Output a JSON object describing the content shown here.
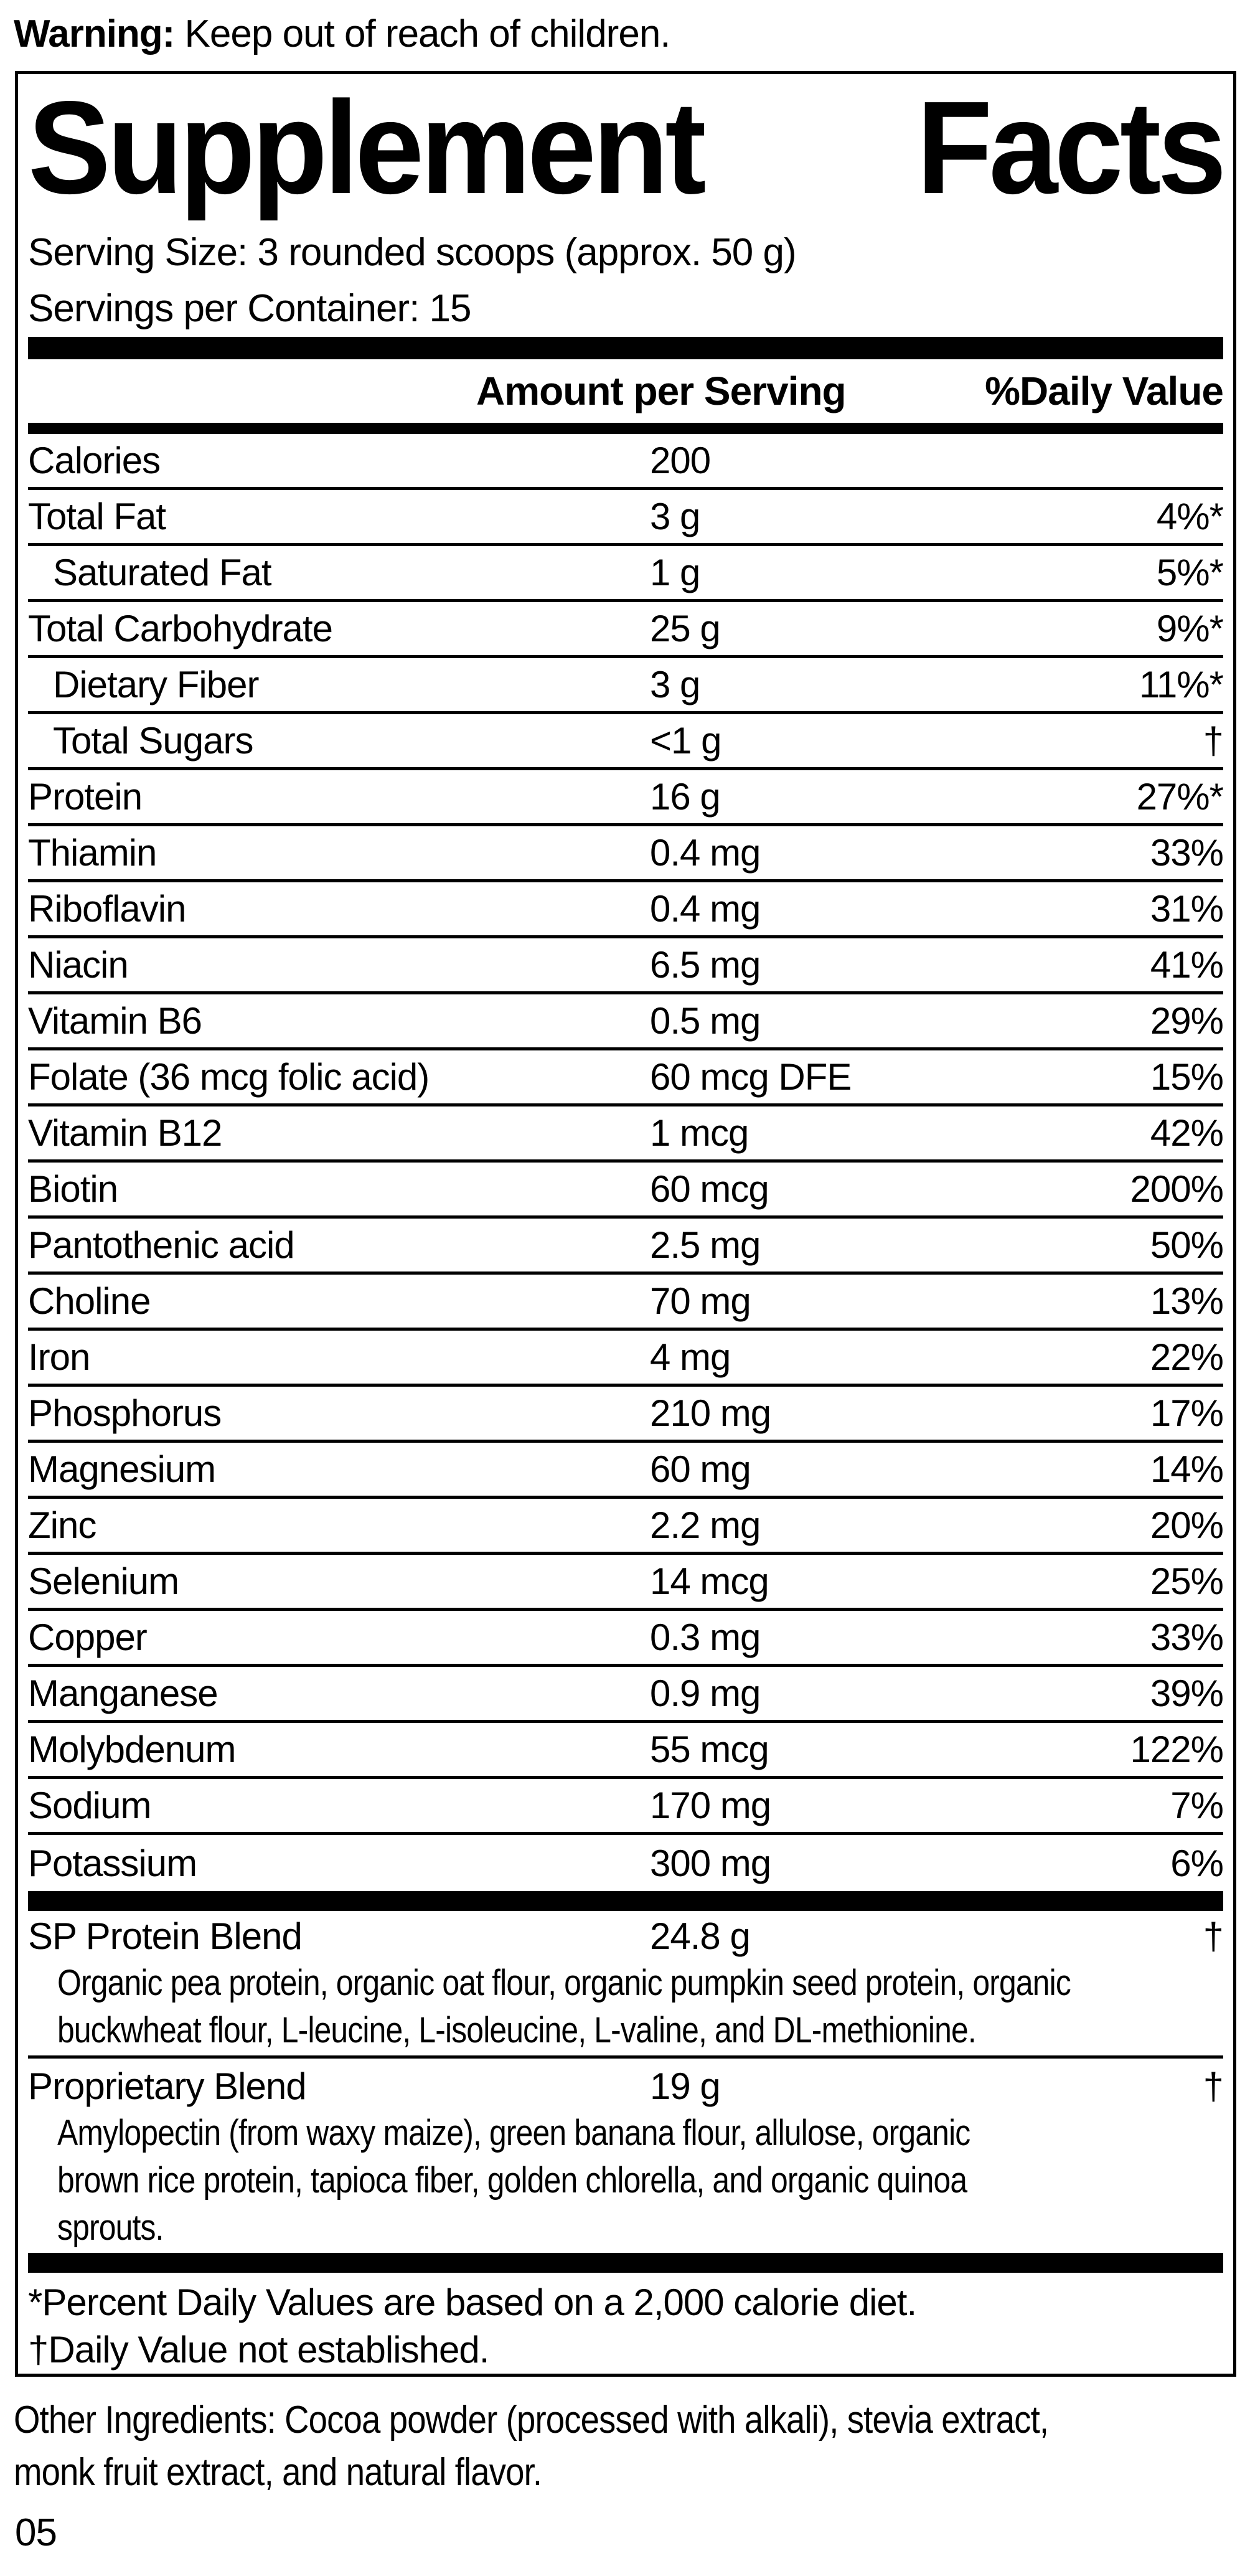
{
  "colors": {
    "ink": "#000000",
    "paper": "#ffffff"
  },
  "warning": {
    "label": "Warning:",
    "text": " Keep out of reach of children."
  },
  "panel": {
    "title": {
      "word1": "Supplement",
      "word2": "Facts"
    },
    "serving_size": "Serving Size: 3 rounded scoops (approx. 50 g)",
    "servings_per_container": "Servings per Container: 15",
    "columns": {
      "amount": "Amount per Serving",
      "daily_value": "%Daily Value"
    },
    "rows": [
      {
        "name": "Calories",
        "amount": "200",
        "dv": "",
        "indent": false
      },
      {
        "name": "Total Fat",
        "amount": "3 g",
        "dv": "4%*",
        "indent": false
      },
      {
        "name": "Saturated Fat",
        "amount": "1 g",
        "dv": "5%*",
        "indent": true
      },
      {
        "name": "Total Carbohydrate",
        "amount": "25 g",
        "dv": "9%*",
        "indent": false
      },
      {
        "name": "Dietary Fiber",
        "amount": "3 g",
        "dv": "11%*",
        "indent": true
      },
      {
        "name": "Total Sugars",
        "amount": "<1 g",
        "dv": "†",
        "indent": true
      },
      {
        "name": "Protein",
        "amount": "16 g",
        "dv": "27%*",
        "indent": false
      },
      {
        "name": "Thiamin",
        "amount": "0.4 mg",
        "dv": "33%",
        "indent": false
      },
      {
        "name": "Riboflavin",
        "amount": "0.4 mg",
        "dv": "31%",
        "indent": false
      },
      {
        "name": "Niacin",
        "amount": "6.5 mg",
        "dv": "41%",
        "indent": false
      },
      {
        "name": "Vitamin B6",
        "amount": "0.5 mg",
        "dv": "29%",
        "indent": false
      },
      {
        "name": "Folate (36 mcg folic acid)",
        "amount": "60 mcg DFE",
        "dv": "15%",
        "indent": false
      },
      {
        "name": "Vitamin B12",
        "amount": "1 mcg",
        "dv": "42%",
        "indent": false
      },
      {
        "name": "Biotin",
        "amount": "60 mcg",
        "dv": "200%",
        "indent": false
      },
      {
        "name": "Pantothenic acid",
        "amount": "2.5 mg",
        "dv": "50%",
        "indent": false
      },
      {
        "name": "Choline",
        "amount": "70 mg",
        "dv": "13%",
        "indent": false
      },
      {
        "name": "Iron",
        "amount": "4 mg",
        "dv": "22%",
        "indent": false
      },
      {
        "name": "Phosphorus",
        "amount": "210 mg",
        "dv": "17%",
        "indent": false
      },
      {
        "name": "Magnesium",
        "amount": "60 mg",
        "dv": "14%",
        "indent": false
      },
      {
        "name": "Zinc",
        "amount": "2.2 mg",
        "dv": "20%",
        "indent": false
      },
      {
        "name": "Selenium",
        "amount": "14 mcg",
        "dv": "25%",
        "indent": false
      },
      {
        "name": "Copper",
        "amount": "0.3 mg",
        "dv": "33%",
        "indent": false
      },
      {
        "name": "Manganese",
        "amount": "0.9 mg",
        "dv": "39%",
        "indent": false
      },
      {
        "name": "Molybdenum",
        "amount": "55 mcg",
        "dv": "122%",
        "indent": false
      },
      {
        "name": "Sodium",
        "amount": "170 mg",
        "dv": "7%",
        "indent": false
      },
      {
        "name": "Potassium",
        "amount": "300 mg",
        "dv": "6%",
        "indent": false
      }
    ],
    "blends": [
      {
        "name": "SP Protein Blend",
        "amount": "24.8 g",
        "dv": "†",
        "description_lines": [
          "Organic pea protein, organic oat flour, organic pumpkin seed protein, organic",
          "buckwheat flour, L-leucine, L-isoleucine, L-valine, and DL-methionine."
        ]
      },
      {
        "name": "Proprietary Blend",
        "amount": "19 g",
        "dv": "†",
        "description_lines": [
          "Amylopectin (from waxy maize), green banana flour, allulose, organic",
          "brown rice protein, tapioca fiber, golden chlorella, and organic quinoa",
          "sprouts."
        ]
      }
    ],
    "footnote_lines": [
      "*Percent Daily Values are based on a 2,000 calorie diet.",
      "†Daily Value not established."
    ]
  },
  "other_ingredients_lines": [
    "Other Ingredients: Cocoa powder (processed with alkali), stevia extract,",
    "monk fruit extract, and natural flavor."
  ],
  "page_number": "05"
}
